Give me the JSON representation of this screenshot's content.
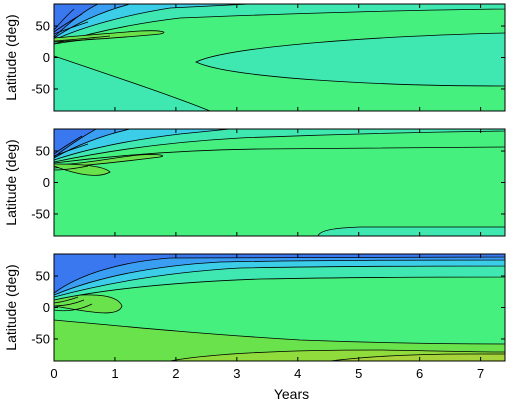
{
  "chart_data": {
    "type": "contour",
    "layout": "three stacked panels sharing x axis",
    "grid": false,
    "legend": "none",
    "xlabel": "Years",
    "x_ticks": [
      "0",
      "1",
      "2",
      "3",
      "4",
      "5",
      "6",
      "7"
    ],
    "xlim": [
      0,
      7.4
    ],
    "colors": {
      "background_green": "#45f07e",
      "teal": "#3fe8b0",
      "cyan": "#3ccde8",
      "blue": "#3a9ef2",
      "deep_blue": "#3a78f0",
      "light_green": "#6ae24c",
      "yellow_green": "#8fdc3c",
      "contour_line": "#000000"
    },
    "panels": [
      {
        "ylabel": "Latitude (deg)",
        "y_ticks": [
          "50",
          "0",
          "-50"
        ],
        "ylim": [
          -85,
          85
        ],
        "show_x_ticklabels": false,
        "features": [
          "high-latitude negative (blue) band decaying with time",
          "equatorial teal region expanding after year 2.5",
          "southern teal region near origin"
        ]
      },
      {
        "ylabel": "Latitude (deg)",
        "y_ticks": [
          "50",
          "0",
          "-50"
        ],
        "ylim": [
          -85,
          85
        ],
        "show_x_ticklabels": false,
        "features": [
          "northern blue band narrowing with time",
          "mid-latitude contour near 50 deg",
          "southern contour near -75 deg after year 4.2"
        ]
      },
      {
        "ylabel": "Latitude (deg)",
        "y_ticks": [
          "50",
          "0",
          "-50"
        ],
        "ylim": [
          -85,
          85
        ],
        "show_x_ticklabels": true,
        "features": [
          "strong northern blue band persisting to year 7.4",
          "southern yellow-green region growing after year 3",
          "multiple nested contours near origin"
        ]
      }
    ]
  }
}
